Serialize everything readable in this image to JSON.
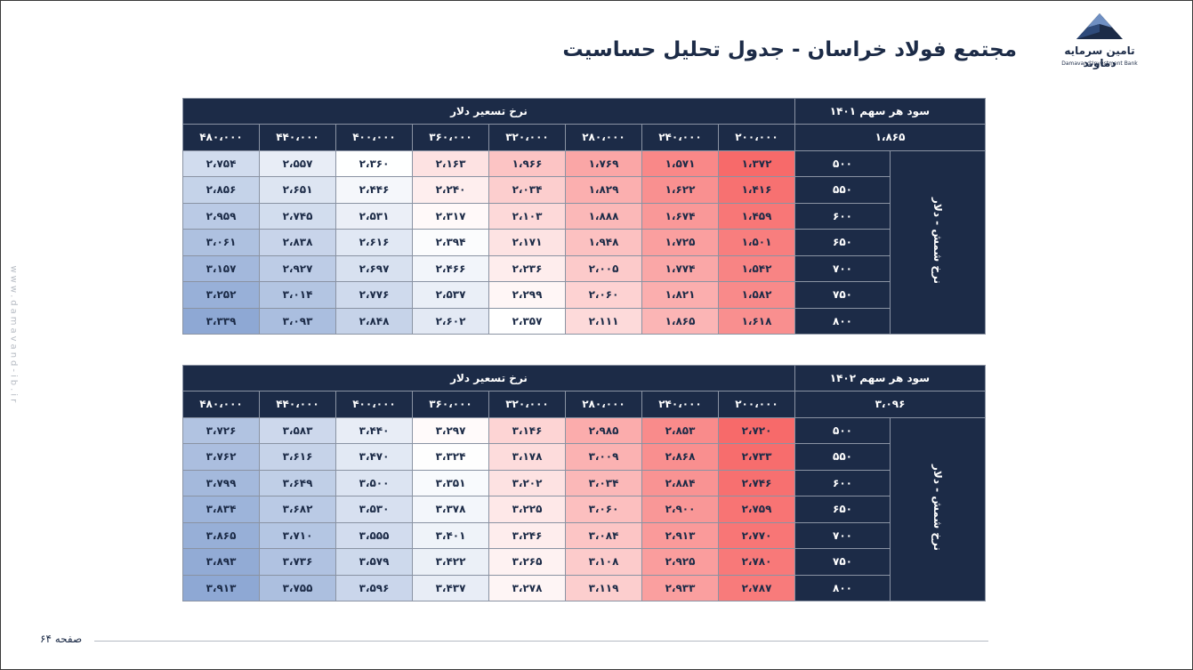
{
  "title": "مجتمع فولاد خراسان - جدول تحلیل حساسیت",
  "logo": {
    "name_fa": "تامین سرمایه دماوند",
    "name_en": "Damavand Investment Bank",
    "icon": "mountain-logo"
  },
  "side_text": "www.damavand-ib.ir",
  "footer": {
    "page_label": "صفحه ۶۴"
  },
  "colors": {
    "navy": "#1c2b47",
    "low": "#f76a6a",
    "mid": "#ffffff",
    "high": "#8ea8d4"
  },
  "tables": [
    {
      "eps_label": "سود هر سهم ۱۴۰۱",
      "base_value": "۱،۸۶۵",
      "x_label": "نرخ تسعیر دلار",
      "y_label": "نرخ شمش - دلار",
      "columns": [
        "۲۰۰،۰۰۰",
        "۲۴۰،۰۰۰",
        "۲۸۰،۰۰۰",
        "۳۲۰،۰۰۰",
        "۳۶۰،۰۰۰",
        "۴۰۰،۰۰۰",
        "۴۴۰،۰۰۰",
        "۴۸۰،۰۰۰"
      ],
      "rows": [
        {
          "label": "۵۰۰",
          "cells": [
            "۱،۳۷۲",
            "۱،۵۷۱",
            "۱،۷۶۹",
            "۱،۹۶۶",
            "۲،۱۶۳",
            "۲،۳۶۰",
            "۲،۵۵۷",
            "۲،۷۵۴"
          ]
        },
        {
          "label": "۵۵۰",
          "cells": [
            "۱،۴۱۶",
            "۱،۶۲۲",
            "۱،۸۲۹",
            "۲،۰۳۴",
            "۲،۲۴۰",
            "۲،۴۴۶",
            "۲،۶۵۱",
            "۲،۸۵۶"
          ]
        },
        {
          "label": "۶۰۰",
          "cells": [
            "۱،۴۵۹",
            "۱،۶۷۴",
            "۱،۸۸۸",
            "۲،۱۰۳",
            "۲،۳۱۷",
            "۲،۵۳۱",
            "۲،۷۴۵",
            "۲،۹۵۹"
          ]
        },
        {
          "label": "۶۵۰",
          "cells": [
            "۱،۵۰۱",
            "۱،۷۲۵",
            "۱،۹۴۸",
            "۲،۱۷۱",
            "۲،۳۹۴",
            "۲،۶۱۶",
            "۲،۸۳۸",
            "۳،۰۶۱"
          ]
        },
        {
          "label": "۷۰۰",
          "cells": [
            "۱،۵۴۲",
            "۱،۷۷۴",
            "۲،۰۰۵",
            "۲،۲۳۶",
            "۲،۴۶۶",
            "۲،۶۹۷",
            "۲،۹۲۷",
            "۳،۱۵۷"
          ]
        },
        {
          "label": "۷۵۰",
          "cells": [
            "۱،۵۸۲",
            "۱،۸۲۱",
            "۲،۰۶۰",
            "۲،۲۹۹",
            "۲،۵۳۷",
            "۲،۷۷۶",
            "۳،۰۱۴",
            "۳،۲۵۲"
          ]
        },
        {
          "label": "۸۰۰",
          "cells": [
            "۱،۶۱۸",
            "۱،۸۶۵",
            "۲،۱۱۱",
            "۲،۳۵۷",
            "۲،۶۰۲",
            "۲،۸۴۸",
            "۳،۰۹۳",
            "۳،۳۳۹"
          ]
        }
      ]
    },
    {
      "eps_label": "سود هر سهم ۱۴۰۲",
      "base_value": "۳،۰۹۶",
      "x_label": "نرخ تسعیر دلار",
      "y_label": "نرخ شمش - دلار",
      "columns": [
        "۲۰۰،۰۰۰",
        "۲۴۰،۰۰۰",
        "۲۸۰،۰۰۰",
        "۳۲۰،۰۰۰",
        "۳۶۰،۰۰۰",
        "۴۰۰،۰۰۰",
        "۴۴۰،۰۰۰",
        "۴۸۰،۰۰۰"
      ],
      "rows": [
        {
          "label": "۵۰۰",
          "cells": [
            "۲،۷۲۰",
            "۲،۸۵۳",
            "۲،۹۸۵",
            "۳،۱۴۶",
            "۳،۲۹۷",
            "۳،۴۴۰",
            "۳،۵۸۳",
            "۳،۷۲۶"
          ]
        },
        {
          "label": "۵۵۰",
          "cells": [
            "۲،۷۳۳",
            "۲،۸۶۸",
            "۳،۰۰۹",
            "۳،۱۷۸",
            "۳،۳۲۴",
            "۳،۴۷۰",
            "۳،۶۱۶",
            "۳،۷۶۲"
          ]
        },
        {
          "label": "۶۰۰",
          "cells": [
            "۲،۷۴۶",
            "۲،۸۸۴",
            "۳،۰۳۴",
            "۳،۲۰۲",
            "۳،۳۵۱",
            "۳،۵۰۰",
            "۳،۶۴۹",
            "۳،۷۹۹"
          ]
        },
        {
          "label": "۶۵۰",
          "cells": [
            "۲،۷۵۹",
            "۲،۹۰۰",
            "۳،۰۶۰",
            "۳،۲۲۵",
            "۳،۳۷۸",
            "۳،۵۳۰",
            "۳،۶۸۲",
            "۳،۸۳۴"
          ]
        },
        {
          "label": "۷۰۰",
          "cells": [
            "۲،۷۷۰",
            "۲،۹۱۳",
            "۳،۰۸۴",
            "۳،۲۴۶",
            "۳،۴۰۱",
            "۳،۵۵۵",
            "۳،۷۱۰",
            "۳،۸۶۵"
          ]
        },
        {
          "label": "۷۵۰",
          "cells": [
            "۲،۷۸۰",
            "۲،۹۲۵",
            "۳،۱۰۸",
            "۳،۲۶۵",
            "۳،۴۲۲",
            "۳،۵۷۹",
            "۳،۷۳۶",
            "۳،۸۹۳"
          ]
        },
        {
          "label": "۸۰۰",
          "cells": [
            "۲،۷۸۷",
            "۲،۹۳۳",
            "۳،۱۱۹",
            "۳،۲۷۸",
            "۳،۴۳۷",
            "۳،۵۹۶",
            "۳،۷۵۵",
            "۳،۹۱۳"
          ]
        }
      ]
    }
  ]
}
